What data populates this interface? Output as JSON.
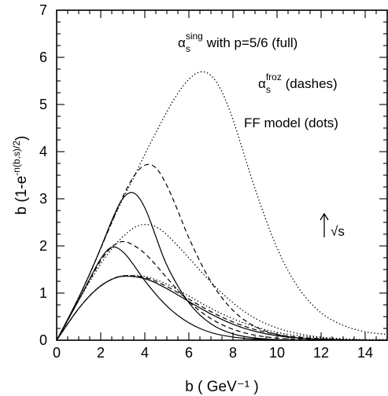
{
  "chart_data": {
    "type": "line",
    "xlabel": "b ( GeV⁻¹ )",
    "ylabel": "b (1-e^{-n(b,s)/2})",
    "xlim": [
      0,
      15
    ],
    "ylim": [
      0,
      7
    ],
    "x_ticks": [
      0,
      2,
      4,
      6,
      8,
      10,
      12,
      14
    ],
    "y_ticks": [
      0,
      1,
      2,
      3,
      4,
      5,
      6,
      7
    ],
    "grid": false,
    "annotations": {
      "line1": {
        "symbol": "α",
        "sub": "s",
        "sup": "sing",
        "text": " with p=5/6 (full)"
      },
      "line2": {
        "symbol": "α",
        "sub": "s",
        "sup": "froz",
        "text": " (dashes)"
      },
      "line3": "FF model (dots)",
      "arrow_label": "√s"
    },
    "series": [
      {
        "style": "full",
        "x": [
          0,
          0.5,
          1,
          1.5,
          2,
          2.5,
          3,
          4,
          5,
          6,
          7,
          8,
          9,
          10,
          11,
          12,
          13,
          14,
          15
        ],
        "y": [
          0,
          0.35,
          0.68,
          0.95,
          1.16,
          1.3,
          1.37,
          1.33,
          1.1,
          0.82,
          0.55,
          0.33,
          0.18,
          0.09,
          0.04,
          0.02,
          0.01,
          0,
          0
        ]
      },
      {
        "style": "full",
        "x": [
          0,
          0.5,
          1,
          1.5,
          2,
          2.5,
          3,
          3.5,
          4,
          5,
          6,
          7,
          8,
          9,
          10,
          11,
          12
        ],
        "y": [
          0,
          0.42,
          0.85,
          1.3,
          1.75,
          2.02,
          1.9,
          1.6,
          1.25,
          0.7,
          0.35,
          0.15,
          0.06,
          0.02,
          0.01,
          0,
          0
        ]
      },
      {
        "style": "full",
        "x": [
          0,
          0.5,
          1,
          1.5,
          2,
          2.5,
          3,
          3.5,
          4,
          4.5,
          5,
          6,
          7,
          8,
          9,
          10,
          11,
          12
        ],
        "y": [
          0,
          0.44,
          0.9,
          1.4,
          1.95,
          2.55,
          3.05,
          3.18,
          2.85,
          2.2,
          1.55,
          0.75,
          0.32,
          0.12,
          0.04,
          0.01,
          0,
          0
        ]
      },
      {
        "style": "dashes",
        "x": [
          0,
          0.5,
          1,
          1.5,
          2,
          2.5,
          3,
          4,
          5,
          6,
          7,
          8,
          9,
          10,
          11,
          12,
          13,
          14,
          15
        ],
        "y": [
          0,
          0.35,
          0.68,
          0.95,
          1.16,
          1.3,
          1.38,
          1.35,
          1.15,
          0.87,
          0.6,
          0.38,
          0.22,
          0.12,
          0.06,
          0.03,
          0.01,
          0,
          0
        ]
      },
      {
        "style": "dashes",
        "x": [
          0,
          0.5,
          1,
          1.5,
          2,
          2.5,
          3,
          3.5,
          4,
          4.5,
          5,
          6,
          7,
          8,
          9,
          10,
          11,
          12,
          13
        ],
        "y": [
          0,
          0.42,
          0.85,
          1.28,
          1.7,
          2.0,
          2.12,
          2.02,
          1.85,
          1.6,
          1.32,
          0.8,
          0.44,
          0.22,
          0.1,
          0.04,
          0.02,
          0.01,
          0
        ]
      },
      {
        "style": "dashes",
        "x": [
          0,
          0.5,
          1,
          1.5,
          2,
          2.5,
          3,
          3.5,
          4,
          4.5,
          5,
          5.5,
          6,
          7,
          8,
          9,
          10,
          11,
          12,
          13,
          14
        ],
        "y": [
          0,
          0.44,
          0.9,
          1.4,
          1.95,
          2.5,
          3.05,
          3.5,
          3.75,
          3.7,
          3.3,
          2.75,
          2.15,
          1.2,
          0.6,
          0.27,
          0.11,
          0.04,
          0.02,
          0.01,
          0
        ]
      },
      {
        "style": "dots",
        "x": [
          0,
          0.5,
          1,
          1.5,
          2,
          2.5,
          3,
          4,
          5,
          6,
          7,
          8,
          9,
          10,
          11,
          12,
          13,
          14,
          15
        ],
        "y": [
          0,
          0.35,
          0.68,
          0.95,
          1.17,
          1.3,
          1.38,
          1.37,
          1.2,
          0.94,
          0.67,
          0.45,
          0.28,
          0.16,
          0.09,
          0.05,
          0.02,
          0.01,
          0.01
        ]
      },
      {
        "style": "dots",
        "x": [
          0,
          0.5,
          1,
          1.5,
          2,
          2.5,
          3,
          3.5,
          4,
          4.5,
          5,
          6,
          7,
          8,
          9,
          10,
          11,
          12,
          13,
          14,
          15
        ],
        "y": [
          0,
          0.42,
          0.85,
          1.25,
          1.62,
          1.95,
          2.2,
          2.4,
          2.47,
          2.42,
          2.25,
          1.75,
          1.22,
          0.78,
          0.45,
          0.25,
          0.13,
          0.06,
          0.03,
          0.01,
          0.01
        ]
      },
      {
        "style": "dots",
        "x": [
          0,
          0.5,
          1,
          1.5,
          2,
          2.5,
          3,
          3.5,
          4,
          4.5,
          5,
          5.5,
          6,
          6.5,
          7,
          7.5,
          8,
          8.5,
          9,
          10,
          11,
          12,
          13,
          14,
          15
        ],
        "y": [
          0,
          0.44,
          0.9,
          1.4,
          1.95,
          2.5,
          3.0,
          3.45,
          3.95,
          4.4,
          4.85,
          5.25,
          5.55,
          5.72,
          5.65,
          5.3,
          4.7,
          3.95,
          3.2,
          1.9,
          1.05,
          0.55,
          0.3,
          0.17,
          0.12
        ]
      }
    ]
  }
}
